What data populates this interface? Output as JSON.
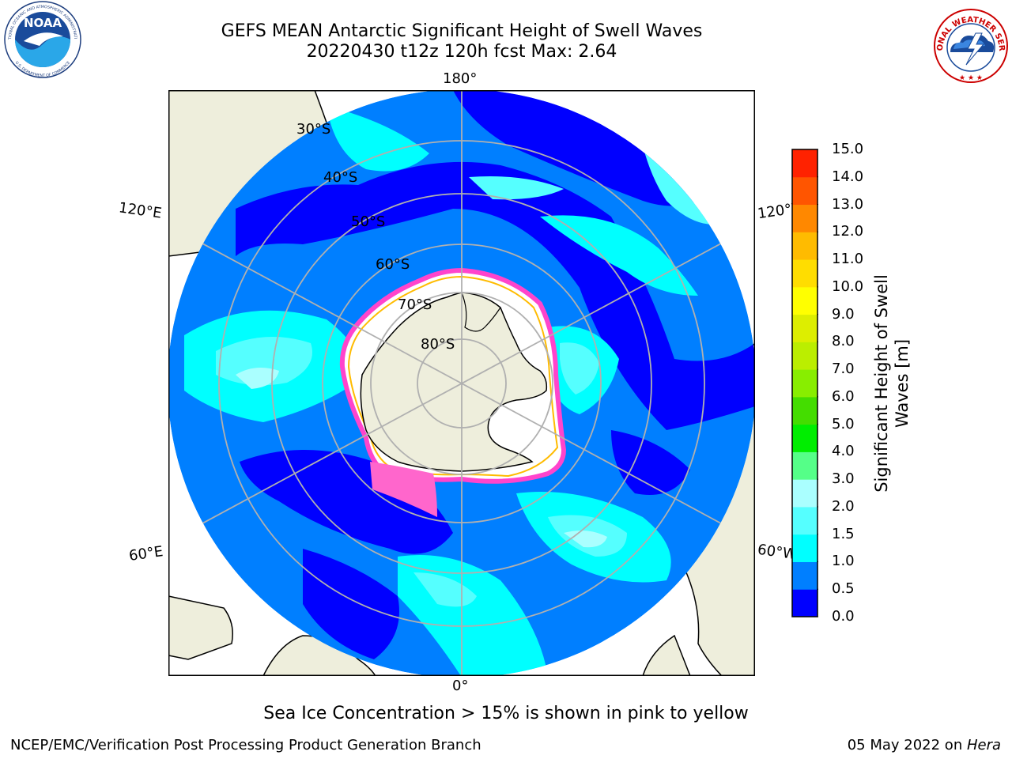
{
  "title": {
    "line1": "GEFS MEAN Antarctic Significant Height of Swell Waves",
    "line2": "20220430 t12z 120h fcst   Max: 2.64"
  },
  "logos": {
    "noaa": "NOAA",
    "noaa_ring": "NATIONAL OCEANIC AND ATMOSPHERIC ADMINISTRATION",
    "noaa_ring_bottom": "U.S. DEPARTMENT OF COMMERCE",
    "nws_ring": "NATIONAL WEATHER SERVICE"
  },
  "map": {
    "projection": "south-polar-stereographic",
    "longitude_labels": {
      "top": "180°",
      "bottom": "0°",
      "left_upper": "120°E",
      "right_upper": "120°W",
      "left_lower": "60°E",
      "right_lower": "60°W"
    },
    "latitude_labels": [
      "30°S",
      "40°S",
      "50°S",
      "60°S",
      "70°S",
      "80°S"
    ],
    "colors": {
      "ocean_bg": "#007fff",
      "land": "#eeeedc",
      "ice_edge": "#ff44cc",
      "grid": "#b0b0b0"
    }
  },
  "colorbar": {
    "label": "Significant Height of Swell Waves [m]",
    "label_line1": "Significant Height of Swell",
    "label_line2": "Waves [m]",
    "ticks": [
      "0.0",
      "0.5",
      "1.0",
      "1.5",
      "2.0",
      "3.0",
      "4.0",
      "5.0",
      "6.0",
      "7.0",
      "8.0",
      "9.0",
      "10.0",
      "11.0",
      "12.0",
      "13.0",
      "14.0",
      "15.0"
    ],
    "colors": [
      "#0000ff",
      "#007fff",
      "#00ffff",
      "#55ffff",
      "#aaffff",
      "#55ff88",
      "#00ee00",
      "#44dd00",
      "#88ee00",
      "#bbee00",
      "#ddee00",
      "#ffff00",
      "#ffdd00",
      "#ffbb00",
      "#ff8800",
      "#ff5500",
      "#ff2200"
    ]
  },
  "note": "Sea Ice Concentration > 15% is shown in pink to yellow",
  "footer": {
    "left": "NCEP/EMC/Verification Post Processing Product Generation Branch",
    "right_date": "05 May 2022 on ",
    "right_host": "Hera"
  }
}
